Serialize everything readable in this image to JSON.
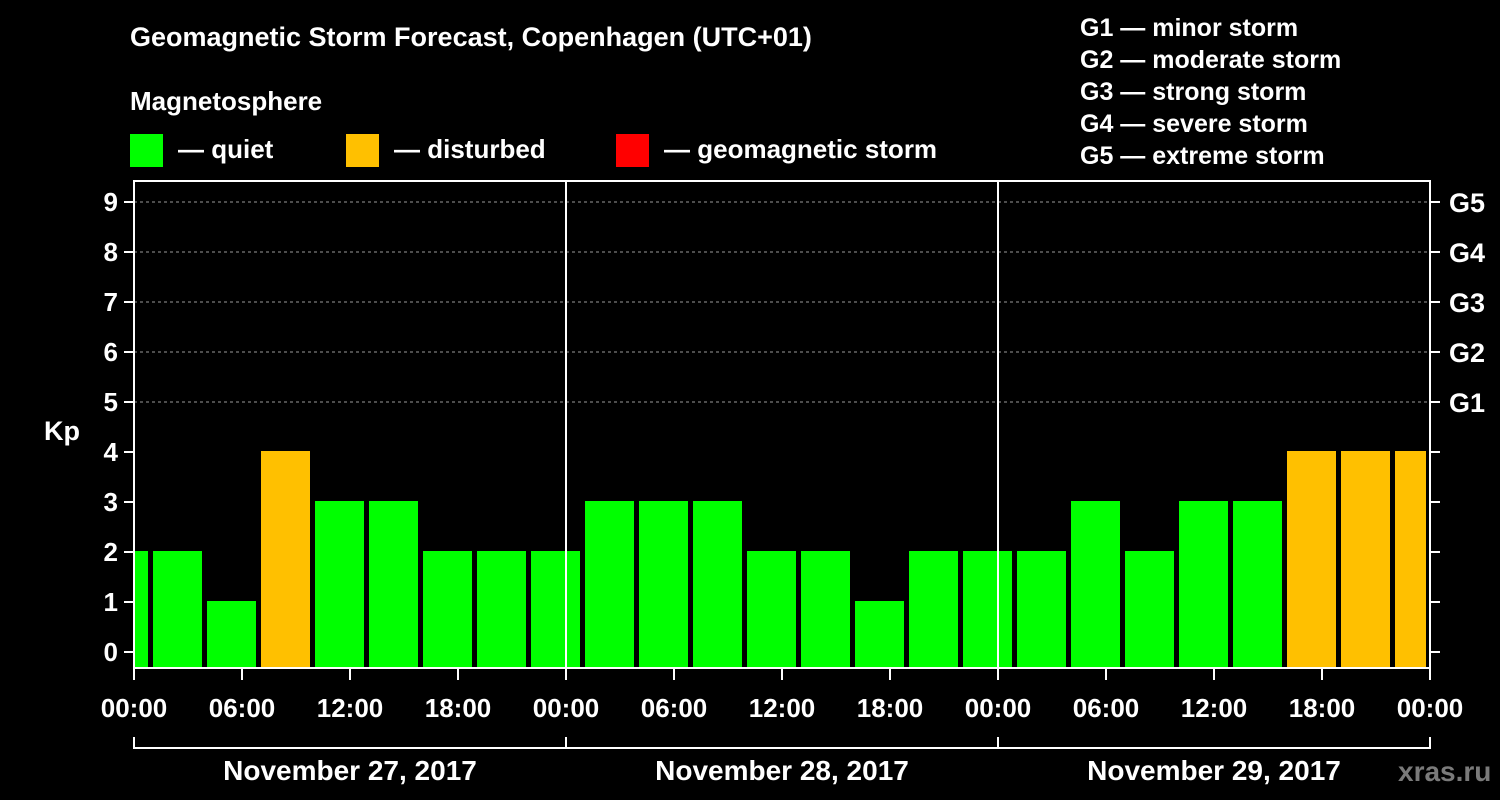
{
  "chart_data": {
    "type": "bar",
    "title": "Geomagnetic Storm Forecast, Copenhagen (UTC+01)",
    "subtitle": "Magnetosphere",
    "ylabel": "Kp",
    "ylim": [
      0,
      9
    ],
    "yticks": [
      "0",
      "1",
      "2",
      "3",
      "4",
      "5",
      "6",
      "7",
      "8",
      "9"
    ],
    "right_ticks": [
      {
        "kp": 5,
        "label": "G1"
      },
      {
        "kp": 6,
        "label": "G2"
      },
      {
        "kp": 7,
        "label": "G3"
      },
      {
        "kp": 8,
        "label": "G4"
      },
      {
        "kp": 9,
        "label": "G5"
      }
    ],
    "x_hour_range": [
      0,
      72
    ],
    "xticks": [
      {
        "hour": 0,
        "label": "00:00"
      },
      {
        "hour": 6,
        "label": "06:00"
      },
      {
        "hour": 12,
        "label": "12:00"
      },
      {
        "hour": 18,
        "label": "18:00"
      },
      {
        "hour": 24,
        "label": "00:00"
      },
      {
        "hour": 30,
        "label": "06:00"
      },
      {
        "hour": 36,
        "label": "12:00"
      },
      {
        "hour": 42,
        "label": "18:00"
      },
      {
        "hour": 48,
        "label": "00:00"
      },
      {
        "hour": 54,
        "label": "06:00"
      },
      {
        "hour": 60,
        "label": "12:00"
      },
      {
        "hour": 66,
        "label": "18:00"
      },
      {
        "hour": 72,
        "label": "00:00"
      }
    ],
    "days": [
      {
        "start": 0,
        "end": 24,
        "label": "November 27, 2017"
      },
      {
        "start": 24,
        "end": 48,
        "label": "November 28, 2017"
      },
      {
        "start": 48,
        "end": 72,
        "label": "November 29, 2017"
      }
    ],
    "bars": [
      {
        "start": 0,
        "end": 1,
        "kp": 2,
        "status": "quiet"
      },
      {
        "start": 1,
        "end": 4,
        "kp": 2,
        "status": "quiet"
      },
      {
        "start": 4,
        "end": 7,
        "kp": 1,
        "status": "quiet"
      },
      {
        "start": 7,
        "end": 10,
        "kp": 4,
        "status": "disturbed"
      },
      {
        "start": 10,
        "end": 13,
        "kp": 3,
        "status": "quiet"
      },
      {
        "start": 13,
        "end": 16,
        "kp": 3,
        "status": "quiet"
      },
      {
        "start": 16,
        "end": 19,
        "kp": 2,
        "status": "quiet"
      },
      {
        "start": 19,
        "end": 22,
        "kp": 2,
        "status": "quiet"
      },
      {
        "start": 22,
        "end": 25,
        "kp": 2,
        "status": "quiet"
      },
      {
        "start": 25,
        "end": 28,
        "kp": 3,
        "status": "quiet"
      },
      {
        "start": 28,
        "end": 31,
        "kp": 3,
        "status": "quiet"
      },
      {
        "start": 31,
        "end": 34,
        "kp": 3,
        "status": "quiet"
      },
      {
        "start": 34,
        "end": 37,
        "kp": 2,
        "status": "quiet"
      },
      {
        "start": 37,
        "end": 40,
        "kp": 2,
        "status": "quiet"
      },
      {
        "start": 40,
        "end": 43,
        "kp": 1,
        "status": "quiet"
      },
      {
        "start": 43,
        "end": 46,
        "kp": 2,
        "status": "quiet"
      },
      {
        "start": 46,
        "end": 49,
        "kp": 2,
        "status": "quiet"
      },
      {
        "start": 49,
        "end": 52,
        "kp": 2,
        "status": "quiet"
      },
      {
        "start": 52,
        "end": 55,
        "kp": 3,
        "status": "quiet"
      },
      {
        "start": 55,
        "end": 58,
        "kp": 2,
        "status": "quiet"
      },
      {
        "start": 58,
        "end": 61,
        "kp": 3,
        "status": "quiet"
      },
      {
        "start": 61,
        "end": 64,
        "kp": 3,
        "status": "quiet"
      },
      {
        "start": 64,
        "end": 67,
        "kp": 4,
        "status": "disturbed"
      },
      {
        "start": 67,
        "end": 70,
        "kp": 4,
        "status": "disturbed"
      },
      {
        "start": 70,
        "end": 72,
        "kp": 4,
        "status": "disturbed"
      }
    ],
    "legend": [
      {
        "key": "quiet",
        "label": "— quiet",
        "color": "#00FF00"
      },
      {
        "key": "disturbed",
        "label": "— disturbed",
        "color": "#FFC000"
      },
      {
        "key": "storm",
        "label": "— geomagnetic storm",
        "color": "#FF0000"
      }
    ],
    "storm_scale": [
      "G1 — minor storm",
      "G2 — moderate storm",
      "G3 — strong storm",
      "G4 — severe storm",
      "G5 — extreme storm"
    ]
  },
  "watermark": "xras.ru"
}
